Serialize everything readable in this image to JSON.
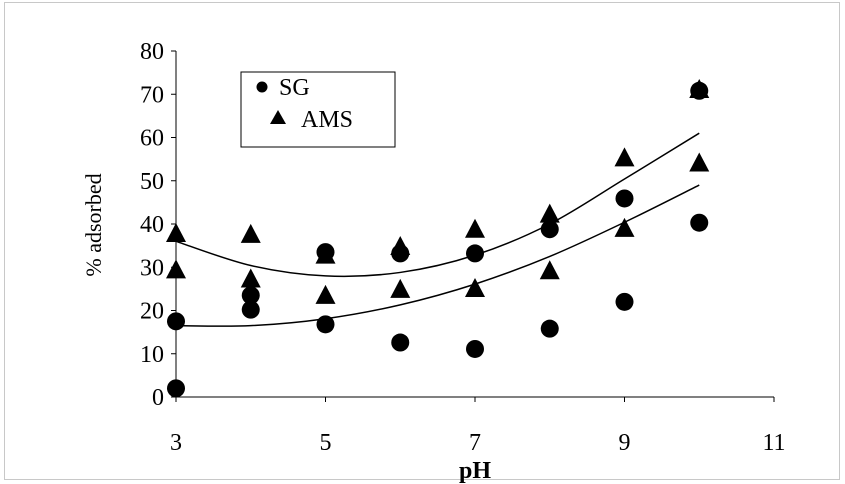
{
  "chart_data": {
    "type": "scatter",
    "title": "",
    "xlabel": "pH",
    "ylabel": "% adsorbed",
    "xlim": [
      3,
      11
    ],
    "ylim": [
      0,
      80
    ],
    "x_ticks": [
      3,
      5,
      7,
      9,
      11
    ],
    "y_ticks": [
      0,
      10,
      20,
      30,
      40,
      50,
      60,
      70,
      80
    ],
    "x_tick_labels": [
      "3",
      "5",
      "7",
      "9",
      "11"
    ],
    "y_tick_labels": [
      "0",
      "10",
      "20",
      "30",
      "40",
      "50",
      "60",
      "70",
      "80"
    ],
    "grid": false,
    "legend_position": "top-left",
    "series": [
      {
        "name": "SG",
        "marker": "circle",
        "color": "#000000",
        "points": [
          [
            3,
            17.5
          ],
          [
            3,
            2
          ],
          [
            4,
            23.5
          ],
          [
            4,
            20.2
          ],
          [
            5,
            33.5
          ],
          [
            5,
            16.8
          ],
          [
            6,
            33.2
          ],
          [
            6,
            12.6
          ],
          [
            7,
            33.2
          ],
          [
            7,
            11.1
          ],
          [
            8,
            38.8
          ],
          [
            8,
            15.8
          ],
          [
            9,
            45.9
          ],
          [
            9,
            22
          ],
          [
            10,
            70.8
          ],
          [
            10,
            40.3
          ]
        ]
      },
      {
        "name": "AMS",
        "marker": "triangle",
        "color": "#000000",
        "points": [
          [
            3,
            37.5
          ],
          [
            3,
            29.1
          ],
          [
            4,
            37.3
          ],
          [
            4,
            27
          ],
          [
            5,
            32.5
          ],
          [
            5,
            23.2
          ],
          [
            6,
            34.5
          ],
          [
            6,
            24.6
          ],
          [
            7,
            38.5
          ],
          [
            7,
            24.8
          ],
          [
            8,
            42
          ],
          [
            8,
            28.9
          ],
          [
            9,
            55
          ],
          [
            9,
            38.7
          ],
          [
            10,
            70.8
          ],
          [
            10,
            53.8
          ]
        ]
      }
    ],
    "trendlines": [
      {
        "type": "polynomial",
        "series": "AMS",
        "points": [
          [
            3,
            36
          ],
          [
            4,
            30.4
          ],
          [
            5,
            28
          ],
          [
            6,
            28.8
          ],
          [
            7,
            32.8
          ],
          [
            8,
            40
          ],
          [
            9,
            50.4
          ],
          [
            10,
            61
          ]
        ]
      },
      {
        "type": "polynomial",
        "series": "SG",
        "points": [
          [
            3,
            16.5
          ],
          [
            4,
            16.5
          ],
          [
            5,
            18.1
          ],
          [
            6,
            21.3
          ],
          [
            7,
            26.1
          ],
          [
            8,
            32.5
          ],
          [
            9,
            40.4
          ],
          [
            10,
            49
          ]
        ]
      }
    ]
  }
}
